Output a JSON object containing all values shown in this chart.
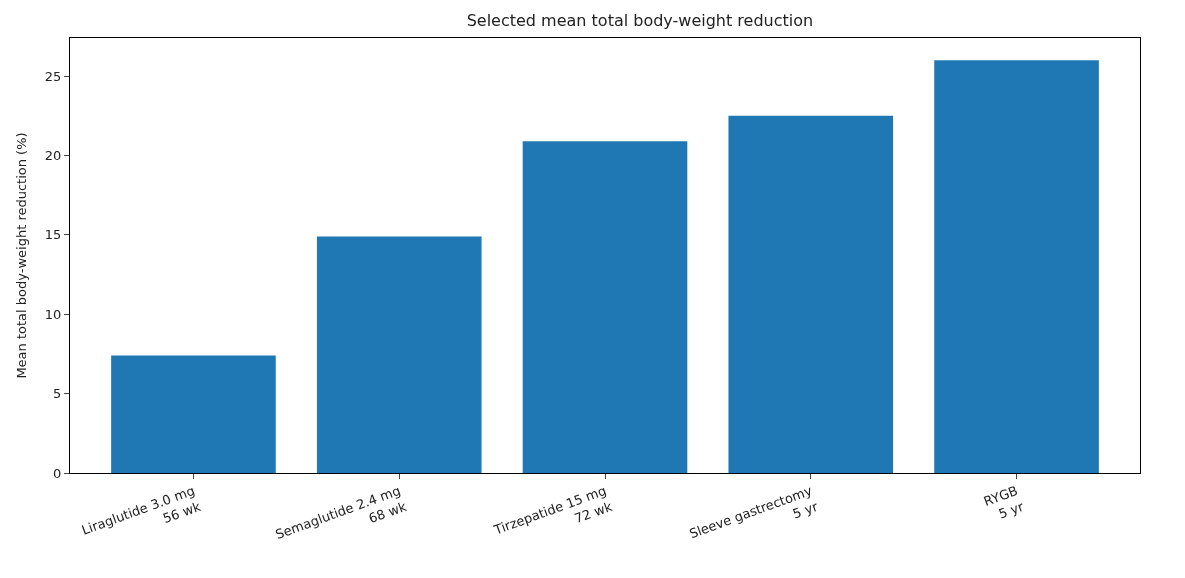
{
  "chart_data": {
    "type": "bar",
    "title": "Selected mean total body-weight reduction",
    "ylabel": "Mean total body-weight reduction (%)",
    "categories": [
      "Liraglutide 3.0 mg\n56 wk",
      "Semaglutide 2.4 mg\n68 wk",
      "Tirzepatide 15 mg\n72 wk",
      "Sleeve gastrectomy\n5 yr",
      "RYGB\n5 yr"
    ],
    "values": [
      7.4,
      14.9,
      20.9,
      22.5,
      26.0
    ],
    "color": "#1f77b4",
    "ylim": [
      0,
      27.4
    ],
    "yticks": [
      0,
      5,
      10,
      15,
      20,
      25
    ]
  }
}
